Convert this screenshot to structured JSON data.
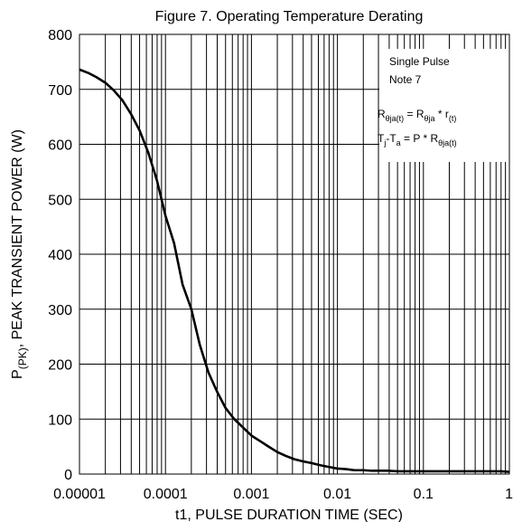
{
  "chart_data": {
    "type": "line",
    "title": "Figure 7. Operating Temperature Derating",
    "xlabel": "t1, PULSE DURATION TIME (SEC)",
    "ylabel": {
      "main": "P",
      "subscript": "(PK)",
      "rest": ", PEAK TRANSIENT POWER (W)"
    },
    "x_scale": "log",
    "xlim": [
      1e-05,
      1
    ],
    "ylim": [
      0,
      800
    ],
    "x_ticks": [
      "0.00001",
      "0.0001",
      "0.001",
      "0.01",
      "0.1",
      "1"
    ],
    "y_ticks": [
      "0",
      "100",
      "200",
      "300",
      "400",
      "500",
      "600",
      "700",
      "800"
    ],
    "grid": true,
    "annotation": {
      "line1": "Single Pulse",
      "line2": "Note 7",
      "eq1": {
        "R": "R",
        "sub1": "θja(t)",
        "eq": " = R",
        "sub2": "θja",
        "mid": " * r",
        "sub3": "(t)"
      },
      "eq2": {
        "T": "T",
        "sub1": "j",
        "dash": "-T",
        "sub2": "a",
        "mid": " = P * R",
        "sub3": "θja(t)"
      }
    },
    "series": [
      {
        "x": [
          1e-05,
          1.26e-05,
          1.58e-05,
          2e-05,
          2.51e-05,
          3.16e-05,
          3.98e-05,
          5.01e-05,
          6.31e-05,
          7.94e-05,
          0.0001,
          0.000126,
          0.000158,
          0.0002,
          0.000251,
          0.000316,
          0.000398,
          0.000501,
          0.000631,
          0.000794,
          0.001,
          0.00126,
          0.00158,
          0.002,
          0.00251,
          0.00316,
          0.00398,
          0.00501,
          0.00631,
          0.00794,
          0.01,
          0.0126,
          0.0158,
          0.02,
          0.0251,
          0.0316,
          0.0398,
          0.0501,
          0.0631,
          0.0794,
          0.1,
          0.126,
          0.158,
          0.2,
          0.251,
          0.316,
          0.398,
          0.501,
          0.631,
          0.794,
          1
        ],
        "y": [
          736,
          730,
          722,
          712,
          698,
          680,
          655,
          625,
          585,
          535,
          470,
          420,
          345,
          300,
          235,
          185,
          150,
          120,
          100,
          85,
          70,
          60,
          50,
          40,
          33,
          27,
          23,
          20,
          16,
          13,
          10,
          9,
          7,
          7,
          6,
          6,
          6,
          5,
          5,
          5,
          5,
          5,
          5,
          5,
          5,
          5,
          5,
          5,
          5,
          5,
          4
        ]
      }
    ],
    "colors": {
      "line": "#000000",
      "grid": "#000000",
      "background": "#ffffff"
    }
  }
}
